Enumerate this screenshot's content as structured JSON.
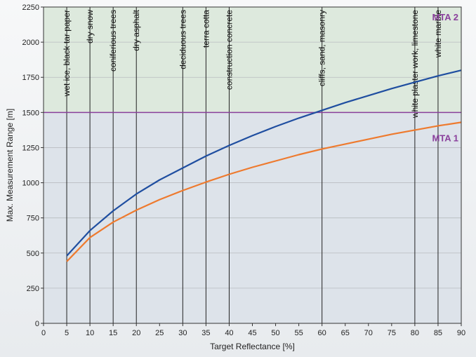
{
  "chart_data": {
    "type": "line",
    "xlabel": "Target Reflectance [%]",
    "ylabel": "Max. Measurement Range [m]",
    "xlim": [
      0,
      90
    ],
    "ylim": [
      0,
      2250
    ],
    "x_ticks": [
      "0",
      "5",
      "10",
      "15",
      "20",
      "25",
      "30",
      "35",
      "40",
      "45",
      "50",
      "55",
      "60",
      "65",
      "70",
      "75",
      "80",
      "85",
      "90"
    ],
    "y_ticks": [
      "0",
      "250",
      "500",
      "750",
      "1000",
      "1250",
      "1500",
      "1750",
      "2000",
      "2250"
    ],
    "grid": true,
    "zones": [
      {
        "label": "MTA 1",
        "from": 0,
        "to": 1500,
        "color": "#dde3ea"
      },
      {
        "label": "MTA 2",
        "from": 1500,
        "to": 2250,
        "color": "#dde9dd"
      }
    ],
    "zone_boundary": 1500,
    "zone_label_color": "#8a3f9c",
    "boundary_color": "#8a3f9c",
    "series": [
      {
        "color": "#1f4ea0",
        "x": [
          5,
          10,
          15,
          20,
          25,
          30,
          35,
          40,
          45,
          50,
          55,
          60,
          65,
          70,
          75,
          80,
          85,
          90
        ],
        "y": [
          480,
          660,
          800,
          920,
          1020,
          1105,
          1190,
          1265,
          1335,
          1400,
          1460,
          1515,
          1570,
          1620,
          1670,
          1715,
          1760,
          1800
        ]
      },
      {
        "color": "#ee7a2e",
        "x": [
          5,
          10,
          15,
          20,
          25,
          30,
          35,
          40,
          45,
          50,
          55,
          60,
          65,
          70,
          75,
          80,
          85,
          90
        ],
        "y": [
          440,
          610,
          720,
          805,
          880,
          945,
          1005,
          1060,
          1110,
          1155,
          1200,
          1240,
          1275,
          1310,
          1345,
          1375,
          1405,
          1430
        ]
      }
    ],
    "materials": [
      {
        "x": 5,
        "label": "wet  ice, black tar paper"
      },
      {
        "x": 10,
        "label": "dry snow"
      },
      {
        "x": 15,
        "label": "coniferious trees"
      },
      {
        "x": 20,
        "label": "dry asphalt"
      },
      {
        "x": 30,
        "label": "deciduous trees"
      },
      {
        "x": 35,
        "label": "terra cotta"
      },
      {
        "x": 40,
        "label": "construction concrete"
      },
      {
        "x": 60,
        "label": "cliffs, sand, masonry"
      },
      {
        "x": 80,
        "label": "white plaster work, limestone"
      },
      {
        "x": 85,
        "label": "white marble"
      }
    ]
  }
}
